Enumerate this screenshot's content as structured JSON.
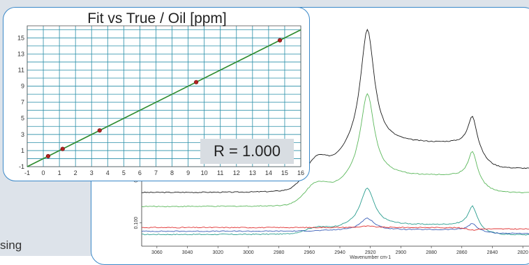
{
  "partial_text": "sing",
  "chart_data": [
    {
      "type": "scatter",
      "title": "Fit vs True / Oil [ppm]",
      "xlim": [
        -1,
        16
      ],
      "ylim": [
        -1,
        16.5
      ],
      "x_ticks": [
        -1,
        0,
        1,
        2,
        3,
        4,
        5,
        6,
        7,
        8,
        9,
        10,
        11,
        12,
        13,
        14,
        15,
        16
      ],
      "y_ticks": [
        -1,
        1,
        3,
        5,
        7,
        9,
        11,
        13,
        15
      ],
      "grid": true,
      "points": [
        {
          "x": 0.3,
          "y": 0.3
        },
        {
          "x": 1.2,
          "y": 1.2
        },
        {
          "x": 3.5,
          "y": 3.5
        },
        {
          "x": 9.5,
          "y": 9.5
        },
        {
          "x": 14.7,
          "y": 14.7
        }
      ],
      "fit_line": {
        "x": [
          -1,
          16
        ],
        "y": [
          -1,
          16
        ]
      },
      "annotation": "R = 1.000",
      "colors": {
        "line": "#2e8b2e",
        "points": "#b22222",
        "grid": "#2a8fa8"
      }
    },
    {
      "type": "line",
      "xlabel": "Wavenumber cm-1",
      "ylabel": "",
      "x_reversed": true,
      "xlim": [
        3070,
        2810
      ],
      "ylim": [
        0.05,
        0.55
      ],
      "x_ticks": [
        3060,
        3040,
        3020,
        3000,
        2980,
        2960,
        2940,
        2920,
        2900,
        2880,
        2860,
        2840,
        2820
      ],
      "y_ticks": [
        0.1,
        0.2
      ],
      "y_tick_labels": [
        "0.100",
        "0.200"
      ],
      "series": [
        {
          "color": "#1a1a1a",
          "baseline": 0.165,
          "peak1": 0.52,
          "peak2": 0.34,
          "shoulder": 0.215,
          "plateau": 0.27,
          "end": 0.18
        },
        {
          "color": "#5cb85c",
          "baseline": 0.135,
          "peak1": 0.38,
          "peak2": 0.26,
          "shoulder": 0.17,
          "plateau": 0.2,
          "end": 0.14
        },
        {
          "color": "#2a9d8f",
          "baseline": 0.075,
          "peak1": 0.175,
          "peak2": 0.14,
          "shoulder": 0.085,
          "plateau": 0.095,
          "end": 0.06
        },
        {
          "color": "#3b5fb8",
          "baseline": 0.082,
          "peak1": 0.11,
          "peak2": 0.1,
          "shoulder": 0.082,
          "plateau": 0.085,
          "end": 0.072
        },
        {
          "color": "#e03030",
          "baseline": 0.09,
          "peak1": 0.093,
          "peak2": 0.085,
          "shoulder": 0.09,
          "plateau": 0.09,
          "end": 0.085
        }
      ]
    }
  ]
}
